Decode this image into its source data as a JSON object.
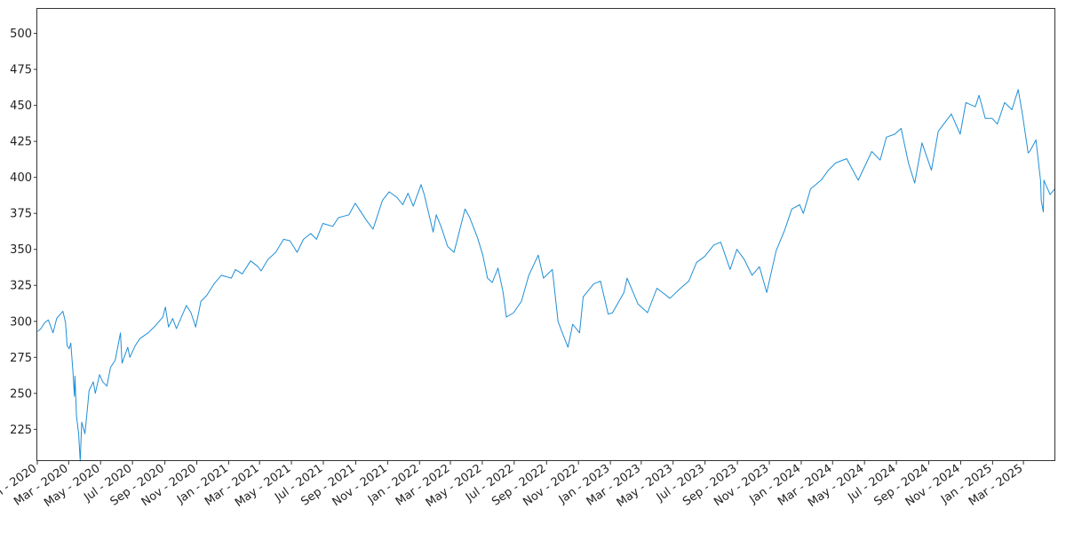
{
  "chart_data": {
    "type": "line",
    "title": "",
    "xlabel": "",
    "ylabel": "",
    "x_range": [
      "2020-01-01",
      "2025-05-01"
    ],
    "ylim": [
      203,
      517
    ],
    "grid": false,
    "line_color": "#1f8fd6",
    "y_ticks": [
      225,
      250,
      275,
      300,
      325,
      350,
      375,
      400,
      425,
      450,
      475,
      500
    ],
    "x_ticks": [
      {
        "date": "2020-01-01",
        "label": "Jan - 2020"
      },
      {
        "date": "2020-03-01",
        "label": "Mar - 2020"
      },
      {
        "date": "2020-05-01",
        "label": "May - 2020"
      },
      {
        "date": "2020-07-01",
        "label": "Jul - 2020"
      },
      {
        "date": "2020-09-01",
        "label": "Sep - 2020"
      },
      {
        "date": "2020-11-01",
        "label": "Nov - 2020"
      },
      {
        "date": "2021-01-01",
        "label": "Jan - 2021"
      },
      {
        "date": "2021-03-01",
        "label": "Mar - 2021"
      },
      {
        "date": "2021-05-01",
        "label": "May - 2021"
      },
      {
        "date": "2021-07-01",
        "label": "Jul - 2021"
      },
      {
        "date": "2021-09-01",
        "label": "Sep - 2021"
      },
      {
        "date": "2021-11-01",
        "label": "Nov - 2021"
      },
      {
        "date": "2022-01-01",
        "label": "Jan - 2022"
      },
      {
        "date": "2022-03-01",
        "label": "Mar - 2022"
      },
      {
        "date": "2022-05-01",
        "label": "May - 2022"
      },
      {
        "date": "2022-07-01",
        "label": "Jul - 2022"
      },
      {
        "date": "2022-09-01",
        "label": "Sep - 2022"
      },
      {
        "date": "2022-11-01",
        "label": "Nov - 2022"
      },
      {
        "date": "2023-01-01",
        "label": "Jan - 2023"
      },
      {
        "date": "2023-03-01",
        "label": "Mar - 2023"
      },
      {
        "date": "2023-05-01",
        "label": "May - 2023"
      },
      {
        "date": "2023-07-01",
        "label": "Jul - 2023"
      },
      {
        "date": "2023-09-01",
        "label": "Sep - 2023"
      },
      {
        "date": "2023-11-01",
        "label": "Nov - 2023"
      },
      {
        "date": "2024-01-01",
        "label": "Jan - 2024"
      },
      {
        "date": "2024-03-01",
        "label": "Mar - 2024"
      },
      {
        "date": "2024-05-01",
        "label": "May - 2024"
      },
      {
        "date": "2024-07-01",
        "label": "Jul - 2024"
      },
      {
        "date": "2024-09-01",
        "label": "Sep - 2024"
      },
      {
        "date": "2024-11-01",
        "label": "Nov - 2024"
      },
      {
        "date": "2025-01-01",
        "label": "Jan - 2025"
      },
      {
        "date": "2025-03-01",
        "label": "Mar - 2025"
      }
    ],
    "series": [
      {
        "color": "#1f8fd6",
        "points": [
          [
            "2020-01-02",
            293
          ],
          [
            "2020-01-08",
            295
          ],
          [
            "2020-01-15",
            299
          ],
          [
            "2020-01-22",
            301
          ],
          [
            "2020-01-31",
            292
          ],
          [
            "2020-02-07",
            302
          ],
          [
            "2020-02-14",
            305
          ],
          [
            "2020-02-19",
            307
          ],
          [
            "2020-02-24",
            299
          ],
          [
            "2020-02-27",
            283
          ],
          [
            "2020-03-02",
            281
          ],
          [
            "2020-03-05",
            285
          ],
          [
            "2020-03-09",
            266
          ],
          [
            "2020-03-12",
            248
          ],
          [
            "2020-03-13",
            262
          ],
          [
            "2020-03-16",
            234
          ],
          [
            "2020-03-20",
            222
          ],
          [
            "2020-03-23",
            203
          ],
          [
            "2020-03-26",
            230
          ],
          [
            "2020-04-01",
            222
          ],
          [
            "2020-04-06",
            240
          ],
          [
            "2020-04-09",
            252
          ],
          [
            "2020-04-17",
            258
          ],
          [
            "2020-04-21",
            250
          ],
          [
            "2020-04-29",
            263
          ],
          [
            "2020-05-05",
            258
          ],
          [
            "2020-05-13",
            255
          ],
          [
            "2020-05-20",
            268
          ],
          [
            "2020-05-29",
            273
          ],
          [
            "2020-06-08",
            292
          ],
          [
            "2020-06-11",
            271
          ],
          [
            "2020-06-22",
            282
          ],
          [
            "2020-06-26",
            275
          ],
          [
            "2020-07-06",
            283
          ],
          [
            "2020-07-15",
            288
          ],
          [
            "2020-07-31",
            292
          ],
          [
            "2020-08-14",
            297
          ],
          [
            "2020-08-28",
            303
          ],
          [
            "2020-09-02",
            310
          ],
          [
            "2020-09-08",
            296
          ],
          [
            "2020-09-16",
            302
          ],
          [
            "2020-09-23",
            295
          ],
          [
            "2020-10-12",
            311
          ],
          [
            "2020-10-21",
            306
          ],
          [
            "2020-10-30",
            296
          ],
          [
            "2020-11-09",
            314
          ],
          [
            "2020-11-20",
            318
          ],
          [
            "2020-12-04",
            326
          ],
          [
            "2020-12-18",
            332
          ],
          [
            "2021-01-06",
            330
          ],
          [
            "2021-01-14",
            336
          ],
          [
            "2021-01-27",
            333
          ],
          [
            "2021-02-12",
            342
          ],
          [
            "2021-02-26",
            338
          ],
          [
            "2021-03-04",
            335
          ],
          [
            "2021-03-17",
            343
          ],
          [
            "2021-04-01",
            348
          ],
          [
            "2021-04-16",
            357
          ],
          [
            "2021-04-28",
            356
          ],
          [
            "2021-05-12",
            348
          ],
          [
            "2021-05-24",
            357
          ],
          [
            "2021-06-07",
            361
          ],
          [
            "2021-06-18",
            357
          ],
          [
            "2021-06-30",
            368
          ],
          [
            "2021-07-19",
            366
          ],
          [
            "2021-07-30",
            372
          ],
          [
            "2021-08-19",
            374
          ],
          [
            "2021-08-31",
            382
          ],
          [
            "2021-09-20",
            371
          ],
          [
            "2021-09-30",
            366
          ],
          [
            "2021-10-04",
            364
          ],
          [
            "2021-10-22",
            384
          ],
          [
            "2021-11-04",
            390
          ],
          [
            "2021-11-19",
            386
          ],
          [
            "2021-11-30",
            381
          ],
          [
            "2021-12-10",
            389
          ],
          [
            "2021-12-20",
            380
          ],
          [
            "2022-01-04",
            395
          ],
          [
            "2022-01-10",
            388
          ],
          [
            "2022-01-27",
            362
          ],
          [
            "2022-02-02",
            374
          ],
          [
            "2022-02-11",
            366
          ],
          [
            "2022-02-24",
            352
          ],
          [
            "2022-03-08",
            348
          ],
          [
            "2022-03-29",
            378
          ],
          [
            "2022-04-07",
            372
          ],
          [
            "2022-04-22",
            358
          ],
          [
            "2022-05-02",
            346
          ],
          [
            "2022-05-11",
            330
          ],
          [
            "2022-05-20",
            327
          ],
          [
            "2022-05-31",
            337
          ],
          [
            "2022-06-10",
            320
          ],
          [
            "2022-06-16",
            303
          ],
          [
            "2022-06-30",
            306
          ],
          [
            "2022-07-15",
            314
          ],
          [
            "2022-07-29",
            332
          ],
          [
            "2022-08-16",
            346
          ],
          [
            "2022-08-26",
            330
          ],
          [
            "2022-09-12",
            336
          ],
          [
            "2022-09-23",
            300
          ],
          [
            "2022-09-30",
            293
          ],
          [
            "2022-10-12",
            282
          ],
          [
            "2022-10-21",
            298
          ],
          [
            "2022-11-03",
            292
          ],
          [
            "2022-11-10",
            317
          ],
          [
            "2022-11-30",
            326
          ],
          [
            "2022-12-13",
            328
          ],
          [
            "2022-12-28",
            305
          ],
          [
            "2023-01-05",
            306
          ],
          [
            "2023-01-27",
            320
          ],
          [
            "2023-02-02",
            330
          ],
          [
            "2023-02-23",
            312
          ],
          [
            "2023-03-13",
            306
          ],
          [
            "2023-03-31",
            323
          ],
          [
            "2023-04-25",
            316
          ],
          [
            "2023-05-12",
            322
          ],
          [
            "2023-05-31",
            328
          ],
          [
            "2023-06-15",
            341
          ],
          [
            "2023-06-30",
            345
          ],
          [
            "2023-07-18",
            353
          ],
          [
            "2023-07-31",
            355
          ],
          [
            "2023-08-18",
            336
          ],
          [
            "2023-08-31",
            350
          ],
          [
            "2023-09-14",
            343
          ],
          [
            "2023-09-29",
            332
          ],
          [
            "2023-10-13",
            338
          ],
          [
            "2023-10-27",
            320
          ],
          [
            "2023-11-14",
            349
          ],
          [
            "2023-11-30",
            363
          ],
          [
            "2023-12-14",
            378
          ],
          [
            "2023-12-29",
            381
          ],
          [
            "2024-01-05",
            375
          ],
          [
            "2024-01-19",
            392
          ],
          [
            "2024-02-08",
            398
          ],
          [
            "2024-02-22",
            405
          ],
          [
            "2024-03-07",
            410
          ],
          [
            "2024-03-28",
            413
          ],
          [
            "2024-04-19",
            398
          ],
          [
            "2024-05-15",
            418
          ],
          [
            "2024-05-31",
            412
          ],
          [
            "2024-06-12",
            428
          ],
          [
            "2024-06-28",
            430
          ],
          [
            "2024-07-10",
            434
          ],
          [
            "2024-07-24",
            410
          ],
          [
            "2024-08-05",
            396
          ],
          [
            "2024-08-19",
            424
          ],
          [
            "2024-09-06",
            405
          ],
          [
            "2024-09-19",
            432
          ],
          [
            "2024-10-14",
            444
          ],
          [
            "2024-10-31",
            430
          ],
          [
            "2024-11-11",
            452
          ],
          [
            "2024-11-29",
            449
          ],
          [
            "2024-12-06",
            457
          ],
          [
            "2024-12-18",
            441
          ],
          [
            "2024-12-31",
            441
          ],
          [
            "2025-01-10",
            437
          ],
          [
            "2025-01-24",
            452
          ],
          [
            "2025-02-07",
            447
          ],
          [
            "2025-02-19",
            461
          ],
          [
            "2025-02-27",
            444
          ],
          [
            "2025-03-10",
            417
          ],
          [
            "2025-03-13",
            418
          ],
          [
            "2025-03-25",
            426
          ],
          [
            "2025-04-03",
            397
          ],
          [
            "2025-04-04",
            384
          ],
          [
            "2025-04-08",
            376
          ],
          [
            "2025-04-09",
            398
          ],
          [
            "2025-04-21",
            388
          ],
          [
            "2025-04-30",
            392
          ]
        ]
      }
    ]
  }
}
